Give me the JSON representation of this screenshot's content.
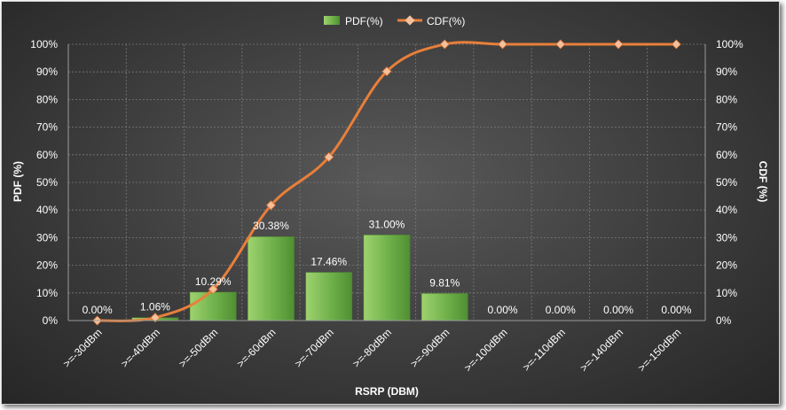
{
  "chart_data": {
    "type": "bar",
    "categories": [
      ">=-30dBm",
      ">=-40dBm",
      ">=-50dBm",
      ">=-60dBm",
      ">=-70dBm",
      ">=-80dBm",
      ">=-90dBm",
      ">=-100dBm",
      ">=-110dBm",
      ">=-140dBm",
      ">=-150dBm"
    ],
    "series": [
      {
        "name": "PDF(%)",
        "kind": "bar",
        "axis": "left",
        "values": [
          0.0,
          1.06,
          10.29,
          30.38,
          17.46,
          31.0,
          9.81,
          0.0,
          0.0,
          0.0,
          0.0
        ],
        "labels": [
          "0.00%",
          "1.06%",
          "10.29%",
          "30.38%",
          "17.46%",
          "31.00%",
          "9.81%",
          "0.00%",
          "0.00%",
          "0.00%",
          "0.00%"
        ],
        "color": "#6fb04a"
      },
      {
        "name": "CDF(%)",
        "kind": "line",
        "axis": "right",
        "values": [
          0.0,
          1.06,
          11.35,
          41.73,
          59.19,
          90.19,
          100.0,
          100.0,
          100.0,
          100.0,
          100.0
        ],
        "color": "#e87f3a",
        "marker_color": "#f5c09a"
      }
    ],
    "xlabel": "RSRP (DBM)",
    "ylabel": "PDF (%)",
    "y2label": "CDF (%)",
    "ylim": [
      0,
      100
    ],
    "y2lim": [
      0,
      100
    ],
    "yticks": [
      "0%",
      "10%",
      "20%",
      "30%",
      "40%",
      "50%",
      "60%",
      "70%",
      "80%",
      "90%",
      "100%"
    ],
    "grid": true,
    "legend": "top-center"
  }
}
